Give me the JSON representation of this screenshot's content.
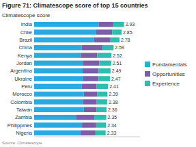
{
  "chart_data": {
    "type": "bar",
    "orientation": "horizontal",
    "stacked": true,
    "title": "Figure 71: Climatescope score of top 15 countries",
    "ylabel": "Climatescope score",
    "annotations": [
      "Source: Climatescope"
    ],
    "categories": [
      "India",
      "Chile",
      "Brazil",
      "China",
      "Kenya",
      "Jordan",
      "Argentina",
      "Ukraine",
      "Peru",
      "Morocco",
      "Colombia",
      "Taiwan",
      "Zambia",
      "Philippines",
      "Nigeria"
    ],
    "series": [
      {
        "name": "Fundamentals",
        "color": "#29abe2",
        "values": [
          2.1,
          2.02,
          1.95,
          1.55,
          1.52,
          1.6,
          1.58,
          1.6,
          1.55,
          1.62,
          1.6,
          1.62,
          1.38,
          1.56,
          1.5
        ]
      },
      {
        "name": "Opportunities",
        "color": "#7b5ea7",
        "values": [
          0.48,
          0.52,
          0.52,
          0.68,
          0.54,
          0.52,
          0.52,
          0.5,
          0.48,
          0.44,
          0.44,
          0.42,
          0.58,
          0.46,
          0.5
        ]
      },
      {
        "name": "Experience",
        "color": "#2dbfad",
        "values": [
          0.35,
          0.31,
          0.31,
          0.36,
          0.46,
          0.39,
          0.39,
          0.37,
          0.38,
          0.33,
          0.34,
          0.32,
          0.39,
          0.32,
          0.33
        ]
      }
    ],
    "totals": [
      2.93,
      2.85,
      2.78,
      2.59,
      2.52,
      2.51,
      2.49,
      2.47,
      2.41,
      2.39,
      2.38,
      2.36,
      2.35,
      2.34,
      2.33
    ],
    "xlim": [
      0,
      3.45
    ],
    "tick_labels": "y",
    "legend": "right",
    "grid": false
  }
}
